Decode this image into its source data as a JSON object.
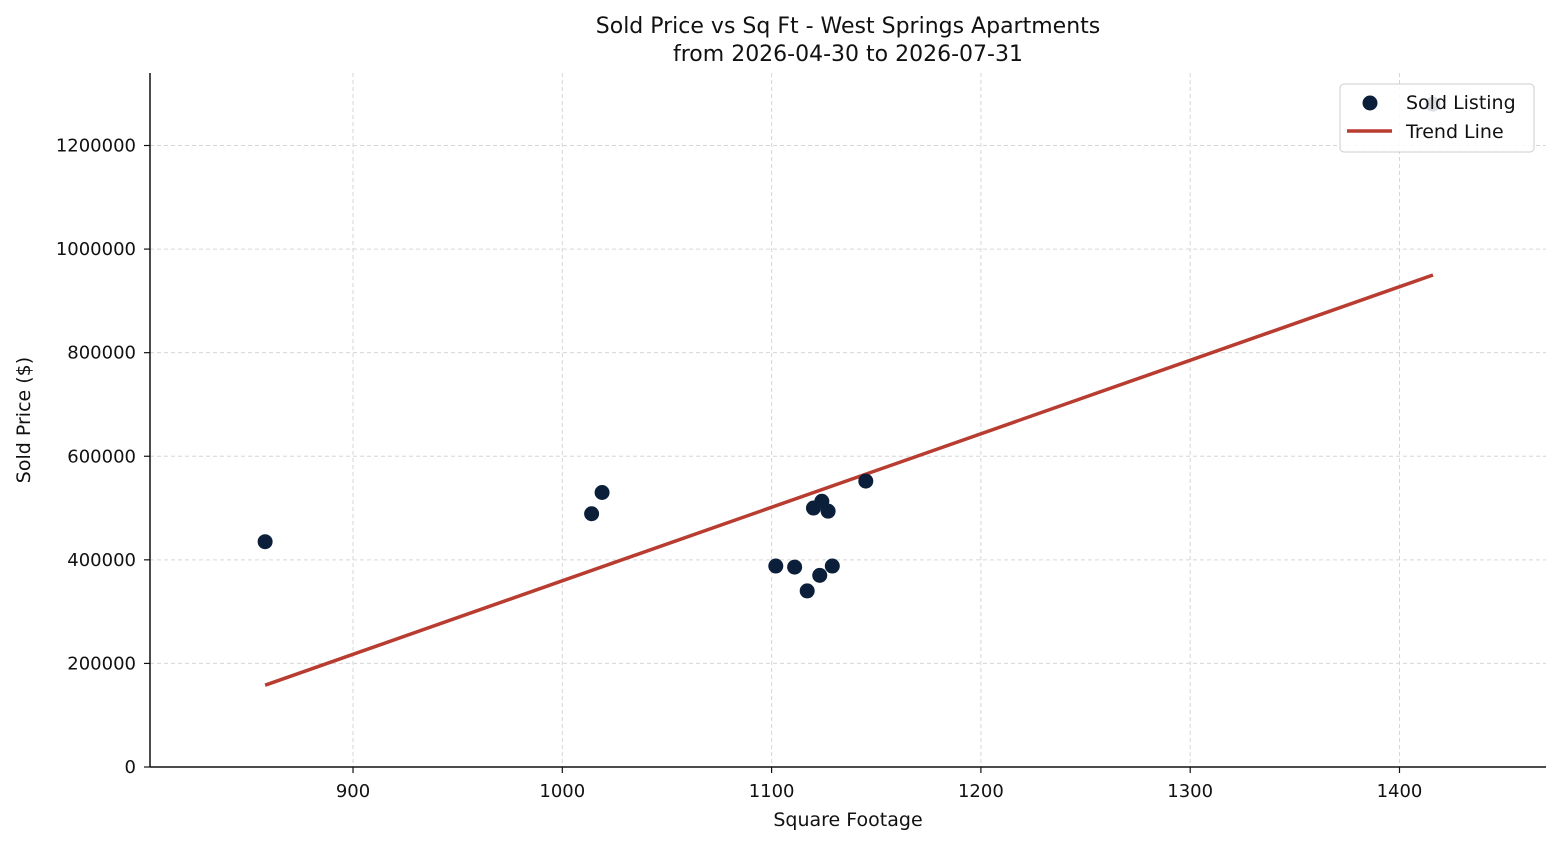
{
  "chart_data": {
    "type": "scatter",
    "title": "Sold Price vs Sq Ft - West Springs Apartments",
    "subtitle": "from 2026-04-30 to 2026-07-31",
    "xlabel": "Square Footage",
    "ylabel": "Sold Price ($)",
    "xlim": [
      803,
      1470
    ],
    "ylim": [
      0,
      1340000
    ],
    "x_ticks": [
      900,
      1000,
      1100,
      1200,
      1300,
      1400
    ],
    "y_ticks": [
      0,
      200000,
      400000,
      600000,
      800000,
      1000000,
      1200000
    ],
    "grid": true,
    "legend_position": "top-right",
    "series": [
      {
        "name": "Sold Listing",
        "type": "scatter",
        "color": "#0b1f3a",
        "points": [
          {
            "x": 858,
            "y": 435000
          },
          {
            "x": 1014,
            "y": 489000
          },
          {
            "x": 1019,
            "y": 530000
          },
          {
            "x": 1102,
            "y": 388000
          },
          {
            "x": 1111,
            "y": 386000
          },
          {
            "x": 1117,
            "y": 340000
          },
          {
            "x": 1120,
            "y": 500000
          },
          {
            "x": 1123,
            "y": 370000
          },
          {
            "x": 1124,
            "y": 513000
          },
          {
            "x": 1127,
            "y": 494000
          },
          {
            "x": 1129,
            "y": 388000
          },
          {
            "x": 1145,
            "y": 552000
          },
          {
            "x": 1416,
            "y": 1280000
          }
        ]
      },
      {
        "name": "Trend Line",
        "type": "line",
        "color": "#b83c30",
        "points": [
          {
            "x": 858,
            "y": 158000
          },
          {
            "x": 1416,
            "y": 950000
          }
        ]
      }
    ]
  }
}
